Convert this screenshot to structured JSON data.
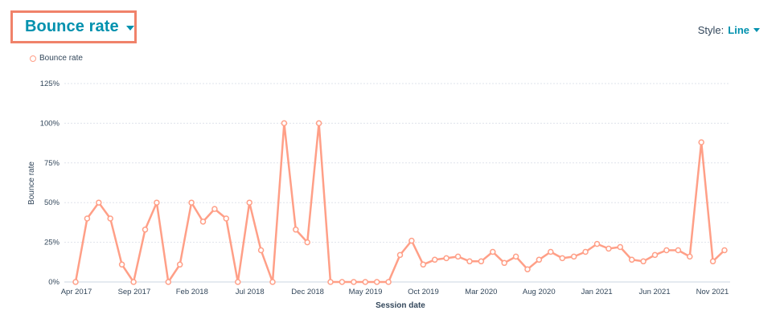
{
  "header": {
    "title": "Bounce rate",
    "style_label": "Style:",
    "style_value": "Line"
  },
  "legend": {
    "label": "Bounce rate"
  },
  "colors": {
    "series": "#ff9f87",
    "accent": "#0091ae",
    "highlight_border": "#f0826a"
  },
  "chart_data": {
    "type": "line",
    "xlabel": "Session date",
    "ylabel": "Bounce rate",
    "ylim": [
      0,
      125
    ],
    "yticks": [
      "0%",
      "25%",
      "50%",
      "75%",
      "100%",
      "125%"
    ],
    "xticks": [
      "Apr 2017",
      "Sep 2017",
      "Feb 2018",
      "Jul 2018",
      "Dec 2018",
      "May 2019",
      "Oct 2019",
      "Mar 2020",
      "Aug 2020",
      "Jan 2021",
      "Jun 2021",
      "Nov 2021"
    ],
    "grid": true,
    "legend_position": "top-left",
    "series": [
      {
        "name": "Bounce rate",
        "values": [
          0,
          40,
          50,
          40,
          11,
          0,
          33,
          50,
          0,
          11,
          50,
          38,
          46,
          40,
          0,
          50,
          20,
          0,
          100,
          33,
          25,
          100,
          0,
          0,
          0,
          0,
          0,
          0,
          17,
          26,
          11,
          14,
          15,
          16,
          13,
          13,
          19,
          12,
          16,
          8,
          14,
          19,
          15,
          16,
          19,
          24,
          21,
          22,
          14,
          13,
          17,
          20,
          20,
          16,
          88,
          13,
          20
        ]
      }
    ]
  }
}
